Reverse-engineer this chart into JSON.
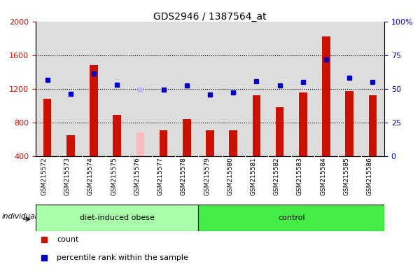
{
  "title": "GDS2946 / 1387564_at",
  "samples": [
    "GSM215572",
    "GSM215573",
    "GSM215574",
    "GSM215575",
    "GSM215576",
    "GSM215577",
    "GSM215578",
    "GSM215579",
    "GSM215580",
    "GSM215581",
    "GSM215582",
    "GSM215583",
    "GSM215584",
    "GSM215585",
    "GSM215586"
  ],
  "counts": [
    1080,
    650,
    1480,
    890,
    680,
    710,
    840,
    710,
    710,
    1120,
    980,
    1160,
    1820,
    1170,
    1120
  ],
  "ranks": [
    1310,
    1140,
    1380,
    1250,
    1190,
    1190,
    1240,
    1130,
    1160,
    1290,
    1240,
    1280,
    1550,
    1330,
    1280
  ],
  "absent_bar_idx": [
    4
  ],
  "absent_rank_idx": [
    4
  ],
  "groups": [
    {
      "label": "diet-induced obese",
      "start": 0,
      "end": 7,
      "color": "#aaffaa"
    },
    {
      "label": "control",
      "start": 7,
      "end": 15,
      "color": "#44ee44"
    }
  ],
  "ylim_left": [
    400,
    2000
  ],
  "ylim_right": [
    0,
    100
  ],
  "yticks_left": [
    400,
    800,
    1200,
    1600,
    2000
  ],
  "yticks_right": [
    0,
    25,
    50,
    75,
    100
  ],
  "bar_color": "#cc1100",
  "absent_bar_color": "#ffbbbb",
  "rank_color": "#0000cc",
  "absent_rank_color": "#bbbbff",
  "grid_color": "black",
  "bg_color": "#dddddd",
  "plot_bg": "#ffffff",
  "bar_width": 0.35
}
